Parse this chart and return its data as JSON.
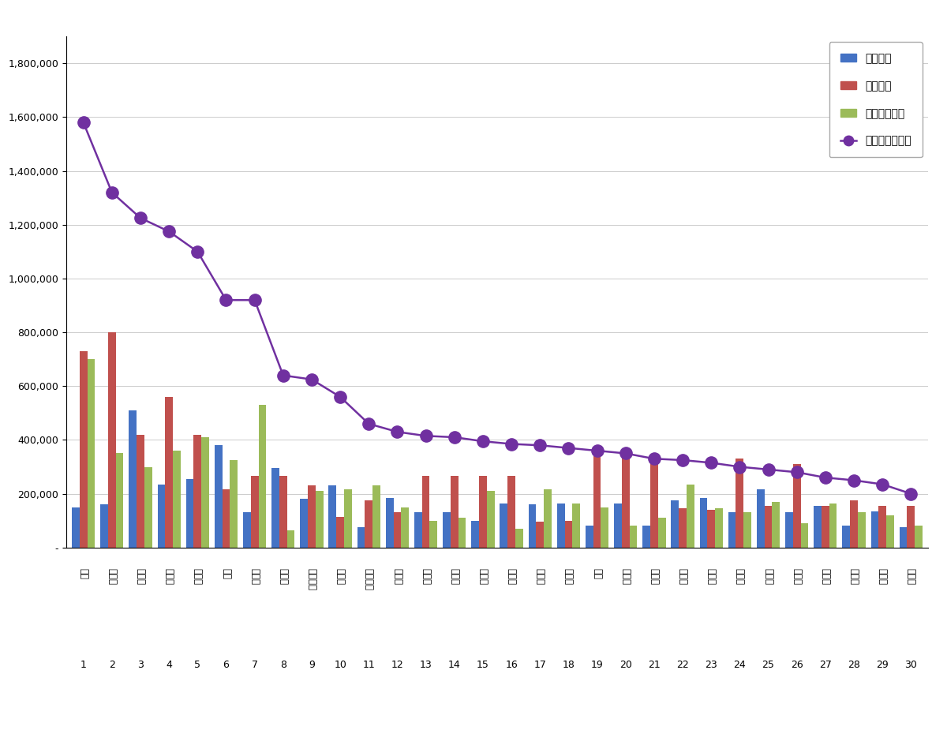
{
  "categories": [
    "공유",
    "백종원",
    "양준일",
    "유재석",
    "손흥민",
    "현빈",
    "이병헌",
    "조정석",
    "강다니엘",
    "권상우",
    "지드래곳",
    "남궁민",
    "서장훈",
    "박보검",
    "하정우",
    "정우성",
    "장성규",
    "정준호",
    "로운",
    "마동석",
    "이상민",
    "전현무",
    "강하늘",
    "신동엽",
    "차은우",
    "박서준",
    "송중기",
    "이시언",
    "양세형",
    "이민호"
  ],
  "numbers": [
    1,
    2,
    3,
    4,
    5,
    6,
    7,
    8,
    9,
    10,
    11,
    12,
    13,
    14,
    15,
    16,
    17,
    18,
    19,
    20,
    21,
    22,
    23,
    24,
    25,
    26,
    27,
    28,
    29,
    30
  ],
  "participation": [
    150000,
    160000,
    510000,
    235000,
    255000,
    380000,
    130000,
    295000,
    180000,
    230000,
    75000,
    185000,
    130000,
    130000,
    100000,
    165000,
    160000,
    165000,
    80000,
    165000,
    80000,
    175000,
    185000,
    130000,
    215000,
    130000,
    155000,
    80000,
    135000,
    75000
  ],
  "communication": [
    730000,
    800000,
    420000,
    560000,
    420000,
    215000,
    265000,
    265000,
    230000,
    115000,
    175000,
    130000,
    265000,
    265000,
    265000,
    265000,
    95000,
    100000,
    340000,
    335000,
    335000,
    145000,
    140000,
    330000,
    155000,
    310000,
    155000,
    175000,
    155000,
    155000
  ],
  "community": [
    700000,
    350000,
    300000,
    360000,
    410000,
    325000,
    530000,
    65000,
    210000,
    215000,
    230000,
    150000,
    100000,
    110000,
    210000,
    70000,
    215000,
    165000,
    150000,
    80000,
    110000,
    235000,
    145000,
    130000,
    170000,
    90000,
    165000,
    130000,
    120000,
    80000
  ],
  "brand": [
    1580000,
    1320000,
    1225000,
    1175000,
    1100000,
    920000,
    920000,
    640000,
    625000,
    560000,
    460000,
    430000,
    415000,
    410000,
    395000,
    385000,
    380000,
    370000,
    360000,
    350000,
    330000,
    325000,
    315000,
    300000,
    290000,
    280000,
    260000,
    250000,
    235000,
    200000
  ],
  "bar_blue": "#4472C4",
  "bar_red": "#C0504D",
  "bar_green": "#9BBB59",
  "line_purple": "#7030A0",
  "bg_color": "#FFFFFF",
  "legend_labels": [
    "참여지수",
    "소통지수",
    "커뮤니티지수",
    "브랜드평판지수"
  ],
  "ylim_max": 1900000,
  "ytick_step": 200000
}
